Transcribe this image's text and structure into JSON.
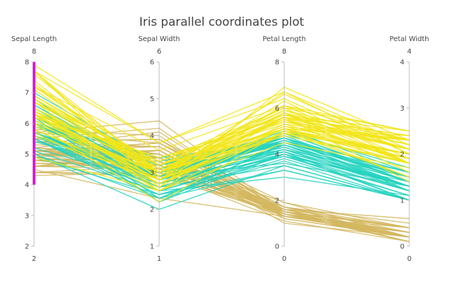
{
  "chart_data": {
    "type": "parallel_coordinates",
    "title": "Iris parallel coordinates plot",
    "dimensions": [
      {
        "label": "Sepal Length",
        "range": [
          2,
          8
        ],
        "ticks": [
          2,
          3,
          4,
          5,
          6,
          7,
          8
        ],
        "range_labels": [
          "8",
          "2"
        ],
        "constraint": [
          4,
          8
        ]
      },
      {
        "label": "Sepal Width",
        "range": [
          1,
          6
        ],
        "ticks": [
          1,
          2,
          3,
          4,
          5,
          6
        ],
        "range_labels": [
          "6",
          "1"
        ]
      },
      {
        "label": "Petal Length",
        "range": [
          0,
          8
        ],
        "ticks": [
          0,
          2,
          4,
          6,
          8
        ],
        "range_labels": [
          "8",
          "0"
        ]
      },
      {
        "label": "Petal Width",
        "range": [
          0,
          4
        ],
        "ticks": [
          0,
          1,
          2,
          3,
          4
        ],
        "range_labels": [
          "4",
          "0"
        ]
      }
    ],
    "constraint_color": "#d61fd6",
    "series": [
      {
        "color": "#d4b860",
        "samples": [
          [
            5.1,
            3.5,
            1.4,
            0.2
          ],
          [
            4.9,
            3.0,
            1.4,
            0.2
          ],
          [
            4.7,
            3.2,
            1.3,
            0.2
          ],
          [
            4.6,
            3.1,
            1.5,
            0.2
          ],
          [
            5.0,
            3.6,
            1.4,
            0.2
          ],
          [
            5.4,
            3.9,
            1.7,
            0.4
          ],
          [
            4.6,
            3.4,
            1.4,
            0.3
          ],
          [
            5.0,
            3.4,
            1.5,
            0.2
          ],
          [
            4.4,
            2.9,
            1.4,
            0.2
          ],
          [
            4.9,
            3.1,
            1.5,
            0.1
          ],
          [
            5.4,
            3.7,
            1.5,
            0.2
          ],
          [
            4.8,
            3.4,
            1.6,
            0.2
          ],
          [
            4.8,
            3.0,
            1.4,
            0.1
          ],
          [
            4.3,
            3.0,
            1.1,
            0.1
          ],
          [
            5.8,
            4.0,
            1.2,
            0.2
          ],
          [
            5.7,
            4.4,
            1.5,
            0.4
          ],
          [
            5.4,
            3.9,
            1.3,
            0.4
          ],
          [
            5.1,
            3.5,
            1.4,
            0.3
          ],
          [
            5.7,
            3.8,
            1.7,
            0.3
          ],
          [
            5.1,
            3.8,
            1.5,
            0.3
          ],
          [
            5.4,
            3.4,
            1.7,
            0.2
          ],
          [
            5.1,
            3.7,
            1.5,
            0.4
          ],
          [
            4.6,
            3.6,
            1.0,
            0.2
          ],
          [
            5.1,
            3.3,
            1.7,
            0.5
          ],
          [
            4.8,
            3.4,
            1.9,
            0.2
          ],
          [
            5.0,
            3.0,
            1.6,
            0.2
          ],
          [
            5.0,
            3.4,
            1.6,
            0.4
          ],
          [
            5.2,
            3.5,
            1.5,
            0.2
          ],
          [
            5.2,
            3.4,
            1.4,
            0.2
          ],
          [
            4.7,
            3.2,
            1.6,
            0.2
          ],
          [
            4.8,
            3.1,
            1.6,
            0.2
          ],
          [
            5.4,
            3.4,
            1.5,
            0.4
          ],
          [
            5.2,
            4.1,
            1.5,
            0.1
          ],
          [
            5.5,
            4.2,
            1.4,
            0.2
          ],
          [
            4.9,
            3.1,
            1.5,
            0.2
          ],
          [
            5.0,
            3.2,
            1.2,
            0.2
          ],
          [
            5.5,
            3.5,
            1.3,
            0.2
          ],
          [
            4.9,
            3.6,
            1.4,
            0.1
          ],
          [
            4.4,
            3.0,
            1.3,
            0.2
          ],
          [
            5.1,
            3.4,
            1.5,
            0.2
          ],
          [
            5.0,
            3.5,
            1.3,
            0.3
          ],
          [
            4.5,
            2.3,
            1.3,
            0.3
          ],
          [
            4.4,
            3.2,
            1.3,
            0.2
          ],
          [
            5.0,
            3.5,
            1.6,
            0.6
          ],
          [
            5.1,
            3.8,
            1.9,
            0.4
          ],
          [
            4.8,
            3.0,
            1.4,
            0.3
          ],
          [
            5.1,
            3.8,
            1.6,
            0.2
          ],
          [
            4.6,
            3.2,
            1.4,
            0.2
          ],
          [
            5.3,
            3.7,
            1.5,
            0.2
          ],
          [
            5.0,
            3.3,
            1.4,
            0.2
          ]
        ]
      },
      {
        "color": "#26d4c0",
        "samples": [
          [
            7.0,
            3.2,
            4.7,
            1.4
          ],
          [
            6.4,
            3.2,
            4.5,
            1.5
          ],
          [
            6.9,
            3.1,
            4.9,
            1.5
          ],
          [
            5.5,
            2.3,
            4.0,
            1.3
          ],
          [
            6.5,
            2.8,
            4.6,
            1.5
          ],
          [
            5.7,
            2.8,
            4.5,
            1.3
          ],
          [
            6.3,
            3.3,
            4.7,
            1.6
          ],
          [
            4.9,
            2.4,
            3.3,
            1.0
          ],
          [
            6.6,
            2.9,
            4.6,
            1.3
          ],
          [
            5.2,
            2.7,
            3.9,
            1.4
          ],
          [
            5.0,
            2.0,
            3.5,
            1.0
          ],
          [
            5.9,
            3.0,
            4.2,
            1.5
          ],
          [
            6.0,
            2.2,
            4.0,
            1.0
          ],
          [
            6.1,
            2.9,
            4.7,
            1.4
          ],
          [
            5.6,
            2.9,
            3.6,
            1.3
          ],
          [
            6.7,
            3.1,
            4.4,
            1.4
          ],
          [
            5.6,
            3.0,
            4.5,
            1.5
          ],
          [
            5.8,
            2.7,
            4.1,
            1.0
          ],
          [
            6.2,
            2.2,
            4.5,
            1.5
          ],
          [
            5.6,
            2.5,
            3.9,
            1.1
          ],
          [
            5.9,
            3.2,
            4.8,
            1.8
          ],
          [
            6.1,
            2.8,
            4.0,
            1.3
          ],
          [
            6.3,
            2.5,
            4.9,
            1.5
          ],
          [
            6.1,
            2.8,
            4.7,
            1.2
          ],
          [
            6.4,
            2.9,
            4.3,
            1.3
          ],
          [
            6.6,
            3.0,
            4.4,
            1.4
          ],
          [
            6.8,
            2.8,
            4.8,
            1.4
          ],
          [
            6.7,
            3.0,
            5.0,
            1.7
          ],
          [
            6.0,
            2.9,
            4.5,
            1.5
          ],
          [
            5.7,
            2.6,
            3.5,
            1.0
          ],
          [
            5.5,
            2.4,
            3.8,
            1.1
          ],
          [
            5.5,
            2.4,
            3.7,
            1.0
          ],
          [
            5.8,
            2.7,
            3.9,
            1.2
          ],
          [
            6.0,
            2.7,
            5.1,
            1.6
          ],
          [
            5.4,
            3.0,
            4.5,
            1.5
          ],
          [
            6.0,
            3.4,
            4.5,
            1.6
          ],
          [
            6.7,
            3.1,
            4.7,
            1.5
          ],
          [
            6.3,
            2.3,
            4.4,
            1.3
          ],
          [
            5.6,
            3.0,
            4.1,
            1.3
          ],
          [
            5.5,
            2.5,
            4.0,
            1.3
          ],
          [
            5.5,
            2.6,
            4.4,
            1.2
          ],
          [
            6.1,
            3.0,
            4.6,
            1.4
          ],
          [
            5.8,
            2.6,
            4.0,
            1.2
          ],
          [
            5.0,
            2.3,
            3.3,
            1.0
          ],
          [
            5.6,
            2.7,
            4.2,
            1.3
          ],
          [
            5.7,
            3.0,
            4.2,
            1.2
          ],
          [
            5.7,
            2.9,
            4.2,
            1.3
          ],
          [
            6.2,
            2.9,
            4.3,
            1.3
          ],
          [
            5.1,
            2.5,
            3.0,
            1.1
          ],
          [
            5.7,
            2.8,
            4.1,
            1.3
          ]
        ]
      },
      {
        "color": "#f2e51a",
        "samples": [
          [
            6.3,
            3.3,
            6.0,
            2.5
          ],
          [
            5.8,
            2.7,
            5.1,
            1.9
          ],
          [
            7.1,
            3.0,
            5.9,
            2.1
          ],
          [
            6.3,
            2.9,
            5.6,
            1.8
          ],
          [
            6.5,
            3.0,
            5.8,
            2.2
          ],
          [
            7.6,
            3.0,
            6.6,
            2.1
          ],
          [
            4.9,
            2.5,
            4.5,
            1.7
          ],
          [
            7.3,
            2.9,
            6.3,
            1.8
          ],
          [
            6.7,
            2.5,
            5.8,
            1.8
          ],
          [
            7.2,
            3.6,
            6.1,
            2.5
          ],
          [
            6.5,
            3.2,
            5.1,
            2.0
          ],
          [
            6.4,
            2.7,
            5.3,
            1.9
          ],
          [
            6.8,
            3.0,
            5.5,
            2.1
          ],
          [
            5.7,
            2.5,
            5.0,
            2.0
          ],
          [
            5.8,
            2.8,
            5.1,
            2.4
          ],
          [
            6.4,
            3.2,
            5.3,
            2.3
          ],
          [
            6.5,
            3.0,
            5.5,
            1.8
          ],
          [
            7.7,
            3.8,
            6.7,
            2.2
          ],
          [
            7.7,
            2.6,
            6.9,
            2.3
          ],
          [
            6.0,
            2.2,
            5.0,
            1.5
          ],
          [
            6.9,
            3.2,
            5.7,
            2.3
          ],
          [
            5.6,
            2.8,
            4.9,
            2.0
          ],
          [
            7.7,
            2.8,
            6.7,
            2.0
          ],
          [
            6.3,
            2.7,
            4.9,
            1.8
          ],
          [
            6.7,
            3.3,
            5.7,
            2.1
          ],
          [
            7.2,
            3.2,
            6.0,
            1.8
          ],
          [
            6.2,
            2.8,
            4.8,
            1.8
          ],
          [
            6.1,
            3.0,
            4.9,
            1.8
          ],
          [
            6.4,
            2.8,
            5.6,
            2.1
          ],
          [
            7.2,
            3.0,
            5.8,
            1.6
          ],
          [
            7.4,
            2.8,
            6.1,
            1.9
          ],
          [
            7.9,
            3.8,
            6.4,
            2.0
          ],
          [
            6.4,
            2.8,
            5.6,
            2.2
          ],
          [
            6.3,
            2.8,
            5.1,
            1.5
          ],
          [
            6.1,
            2.6,
            5.6,
            1.4
          ],
          [
            7.7,
            3.0,
            6.1,
            2.3
          ],
          [
            6.3,
            3.4,
            5.6,
            2.4
          ],
          [
            6.4,
            3.1,
            5.5,
            1.8
          ],
          [
            6.0,
            3.0,
            4.8,
            1.8
          ],
          [
            6.9,
            3.1,
            5.4,
            2.1
          ],
          [
            6.7,
            3.1,
            5.6,
            2.4
          ],
          [
            6.9,
            3.1,
            5.1,
            2.3
          ],
          [
            5.8,
            2.7,
            5.1,
            1.9
          ],
          [
            6.8,
            3.2,
            5.9,
            2.3
          ],
          [
            6.7,
            3.3,
            5.7,
            2.5
          ],
          [
            6.7,
            3.0,
            5.2,
            2.3
          ],
          [
            6.3,
            2.5,
            5.0,
            1.9
          ],
          [
            6.5,
            3.0,
            5.2,
            2.0
          ],
          [
            6.2,
            3.4,
            5.4,
            2.3
          ],
          [
            5.9,
            3.0,
            5.1,
            1.8
          ]
        ]
      }
    ]
  }
}
